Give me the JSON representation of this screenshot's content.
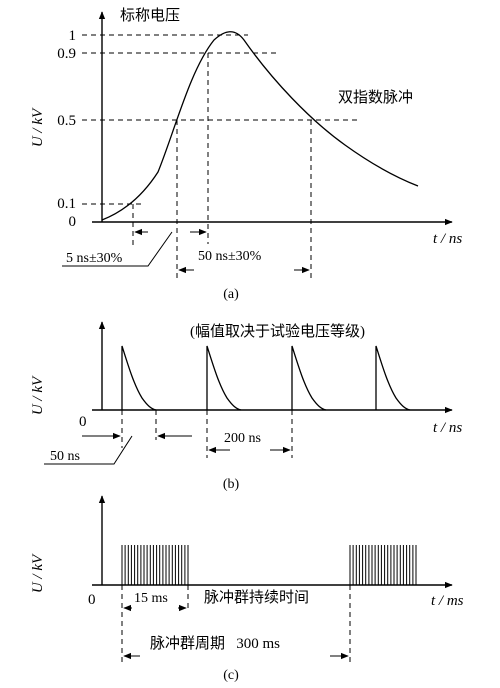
{
  "panel_a": {
    "caption": "(a)",
    "y_axis_label": "U / kV",
    "x_axis_label": "t / ns",
    "nominal_voltage_label": "标称电压",
    "curve_label": "双指数脉冲",
    "y_ticks": [
      "1",
      "0.9",
      "0.5",
      "0.1",
      "0"
    ],
    "rise_time_label": "5 ns±30%",
    "pulse_width_label": "50 ns±30%"
  },
  "panel_b": {
    "caption": "(b)",
    "y_axis_label": "U / kV",
    "x_axis_label": "t / ns",
    "origin_label": "0",
    "amplitude_note": "(幅值取决于试验电压等级)",
    "pulse_duration_label": "50 ns",
    "pulse_period_label": "200 ns"
  },
  "panel_c": {
    "caption": "(c)",
    "y_axis_label": "U / kV",
    "x_axis_label": "t / ms",
    "origin_label": "0",
    "burst_duration_label": "15 ms",
    "burst_duration_text": "脉冲群持续时间",
    "burst_period_label": "脉冲群周期   300 ms"
  }
}
